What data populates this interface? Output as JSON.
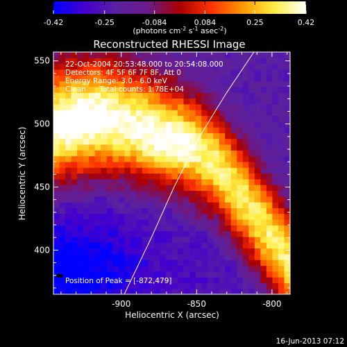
{
  "chart_data": {
    "type": "heatmap",
    "title": "Reconstructed RHESSI Image",
    "xlabel": "Heliocentric X (arcsec)",
    "ylabel": "Heliocentric Y (arcsec)",
    "xlim": [
      -945,
      -788
    ],
    "ylim": [
      365,
      557
    ],
    "x_ticks": [
      {
        "value": -900,
        "label": "-900"
      },
      {
        "value": -850,
        "label": "-850"
      },
      {
        "value": -800,
        "label": "-800"
      }
    ],
    "y_ticks": [
      {
        "value": 400,
        "label": "400"
      },
      {
        "value": 450,
        "label": "450"
      },
      {
        "value": 500,
        "label": "500"
      },
      {
        "value": 550,
        "label": "550"
      }
    ],
    "grid": false,
    "colorbar": {
      "location": "top",
      "range": [
        -0.42,
        0.42
      ],
      "ticks": [
        {
          "value": -0.42,
          "label": "-0.42"
        },
        {
          "value": -0.25,
          "label": "-0.25"
        },
        {
          "value": -0.084,
          "label": "-0.084"
        },
        {
          "value": 0.084,
          "label": "0.084"
        },
        {
          "value": 0.25,
          "label": "0.25"
        },
        {
          "value": 0.42,
          "label": "0.42"
        }
      ],
      "unit_main": "(photons cm",
      "unit_exp1": "-2",
      "unit_mid": " s",
      "unit_exp2": "-1",
      "unit_mid2": " asec",
      "unit_exp3": "-2",
      "unit_end": ")"
    },
    "annotations": {
      "time_range": "22-Oct-2004 20:53:48.000 to 20:54:08.000",
      "detectors": "Detectors: 4F 5F 6F 7F 8F, Att 0",
      "energy_range": "Energy Range: 3.0 - 6.0 keV",
      "clean": "Clean",
      "total_counts": "Total counts: 1.78E+04",
      "peak": "Position of Peak = [-872,479]"
    },
    "limb_curve": [
      [
        -898,
        365
      ],
      [
        -880,
        410
      ],
      [
        -865,
        450
      ],
      [
        -848,
        490
      ],
      [
        -830,
        525
      ],
      [
        -812,
        557
      ]
    ],
    "peak_position": [
      -872,
      479
    ],
    "emission_ridge": [
      [
        -945,
        495
      ],
      [
        -915,
        503
      ],
      [
        -885,
        498
      ],
      [
        -860,
        488
      ],
      [
        -838,
        470
      ],
      [
        -818,
        440
      ],
      [
        -800,
        410
      ],
      [
        -788,
        390
      ]
    ],
    "colors": {
      "background": "#000000",
      "foreground": "#ffffff",
      "limb": "#ffffff",
      "colormap": [
        "#0000ff",
        "#4400cc",
        "#5a22a0",
        "#6a1a8a",
        "#aa0000",
        "#ff3300",
        "#ff9900",
        "#ffee44",
        "#ffffff"
      ]
    }
  },
  "footer": {
    "date": "16-Jun-2013 07:12"
  }
}
